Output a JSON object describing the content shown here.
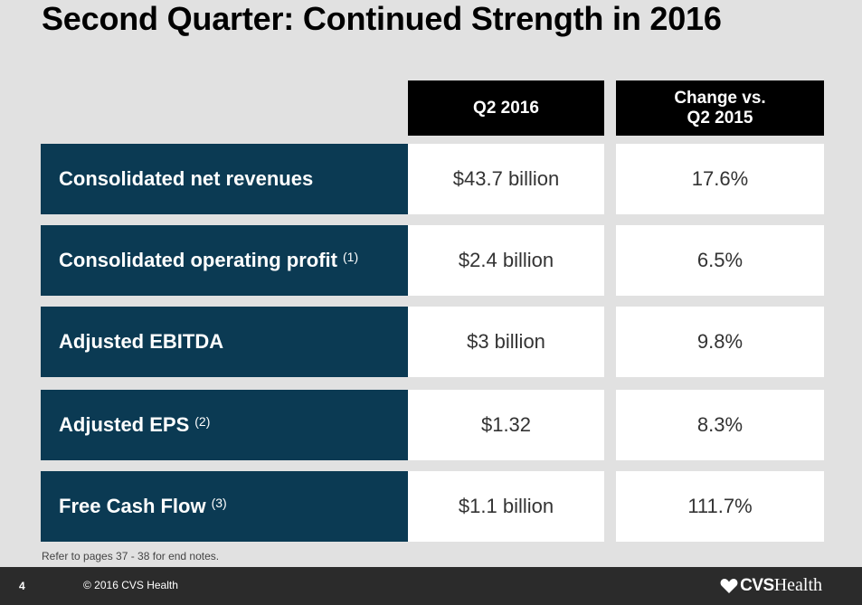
{
  "slide": {
    "title": "Second Quarter: Continued Strength in 2016",
    "columns": {
      "q2": "Q2 2016",
      "change_line1": "Change vs.",
      "change_line2": "Q2 2015"
    },
    "rows": [
      {
        "label": "Consolidated net revenues",
        "note": "",
        "value": "$43.7 billion",
        "change": "17.6%"
      },
      {
        "label": "Consolidated operating profit",
        "note": "(1)",
        "value": "$2.4 billion",
        "change": "6.5%"
      },
      {
        "label": "Adjusted EBITDA",
        "note": "",
        "value": "$3 billion",
        "change": "9.8%"
      },
      {
        "label": "Adjusted EPS",
        "note": "(2)",
        "value": "$1.32",
        "change": "8.3%"
      },
      {
        "label": "Free Cash Flow",
        "note": "(3)",
        "value": "$1.1 billion",
        "change": "111.7%"
      }
    ],
    "footnote": "Refer to pages 37 - 38 for end notes."
  },
  "footer": {
    "page_number": "4",
    "copyright": "© 2016 CVS Health",
    "logo_cvs": "CVS",
    "logo_health": "Health"
  },
  "icons": {
    "logo": "heart-icon"
  },
  "colors": {
    "label_bg": "#0b3a53",
    "header_bg": "#000000",
    "footer_bg": "#2b2b2b",
    "slide_bg": "#e1e1e1"
  }
}
